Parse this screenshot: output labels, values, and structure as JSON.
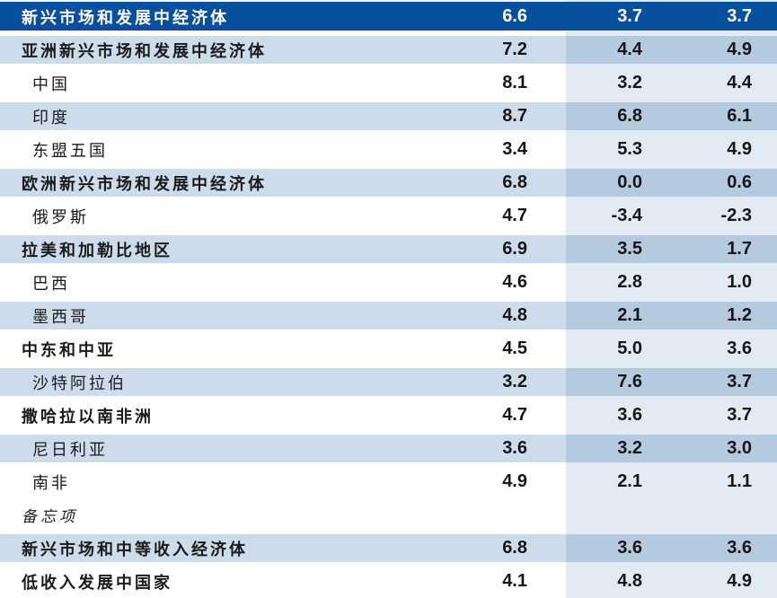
{
  "table": {
    "title_row_label": "新兴市场和发展中经济体",
    "rows": [
      {
        "label": "新兴市场和发展中经济体",
        "values": [
          "6.6",
          "3.7",
          "3.7"
        ]
      },
      {
        "label": "亚洲新兴市场和发展中经济体",
        "values": [
          "7.2",
          "4.4",
          "4.9"
        ]
      },
      {
        "label": "中国",
        "values": [
          "8.1",
          "3.2",
          "4.4"
        ]
      },
      {
        "label": "印度",
        "values": [
          "8.7",
          "6.8",
          "6.1"
        ]
      },
      {
        "label": "东盟五国",
        "values": [
          "3.4",
          "5.3",
          "4.9"
        ]
      },
      {
        "label": "欧洲新兴市场和发展中经济体",
        "values": [
          "6.8",
          "0.0",
          "0.6"
        ]
      },
      {
        "label": "俄罗斯",
        "values": [
          "4.7",
          "-3.4",
          "-2.3"
        ]
      },
      {
        "label": "拉美和加勒比地区",
        "values": [
          "6.9",
          "3.5",
          "1.7"
        ]
      },
      {
        "label": "巴西",
        "values": [
          "4.6",
          "2.8",
          "1.0"
        ]
      },
      {
        "label": "墨西哥",
        "values": [
          "4.8",
          "2.1",
          "1.2"
        ]
      },
      {
        "label": "中东和中亚",
        "values": [
          "4.5",
          "5.0",
          "3.6"
        ]
      },
      {
        "label": "沙特阿拉伯",
        "values": [
          "3.2",
          "7.6",
          "3.7"
        ]
      },
      {
        "label": "撒哈拉以南非洲",
        "values": [
          "4.7",
          "3.6",
          "3.7"
        ]
      },
      {
        "label": "尼日利亚",
        "values": [
          "3.6",
          "3.2",
          "3.0"
        ]
      },
      {
        "label": "南非",
        "values": [
          "4.9",
          "2.1",
          "1.1"
        ]
      },
      {
        "label": "备忘项",
        "values": [
          "",
          "",
          ""
        ]
      },
      {
        "label": "新兴市场和中等收入经济体",
        "values": [
          "6.8",
          "3.6",
          "3.6"
        ]
      },
      {
        "label": "低收入发展中国家",
        "values": [
          "4.1",
          "4.8",
          "4.9"
        ]
      }
    ],
    "colors": {
      "header_bg": "#084f9e",
      "header_text": "#ffffff",
      "stripe_row": "#cddcea",
      "column_band": "#e2eaf3",
      "band_on_stripe": "#b4c9e2",
      "body_text": "#1a1a1a"
    }
  }
}
